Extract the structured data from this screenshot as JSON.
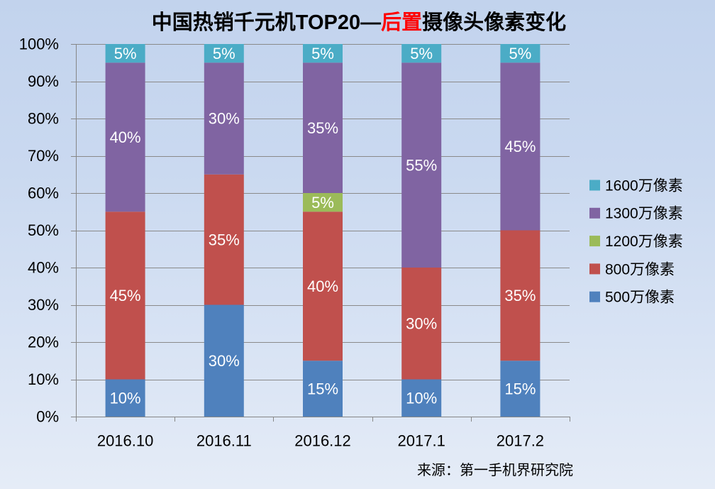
{
  "chart_data": {
    "type": "bar",
    "stacked": true,
    "title": {
      "pre": "中国热销千元机TOP20—",
      "highlight": "后置",
      "post": "摄像头像素变化"
    },
    "categories": [
      "2016.10",
      "2016.11",
      "2016.12",
      "2017.1",
      "2017.2"
    ],
    "series": [
      {
        "name": "500万像素",
        "color": "#4F81BD",
        "values": [
          10,
          30,
          15,
          10,
          15
        ]
      },
      {
        "name": "800万像素",
        "color": "#C0504D",
        "values": [
          45,
          35,
          40,
          30,
          35
        ]
      },
      {
        "name": "1200万像素",
        "color": "#9BBB59",
        "values": [
          0,
          0,
          5,
          0,
          0
        ]
      },
      {
        "name": "1300万像素",
        "color": "#8064A2",
        "values": [
          40,
          30,
          35,
          55,
          45
        ]
      },
      {
        "name": "1600万像素",
        "color": "#4BACC6",
        "values": [
          5,
          5,
          5,
          5,
          5
        ]
      }
    ],
    "unit": "%",
    "ylim": [
      0,
      100
    ],
    "yticks": [
      0,
      10,
      20,
      30,
      40,
      50,
      60,
      70,
      80,
      90,
      100
    ],
    "ytick_labels": [
      "0%",
      "10%",
      "20%",
      "30%",
      "40%",
      "50%",
      "60%",
      "70%",
      "80%",
      "90%",
      "100%"
    ],
    "grid": true,
    "legend": "right"
  },
  "source": "来源：第一手机界研究院",
  "colors": {
    "title_highlight": "#FF0000",
    "grid": "#8A8A8A",
    "axis": "#868686"
  }
}
